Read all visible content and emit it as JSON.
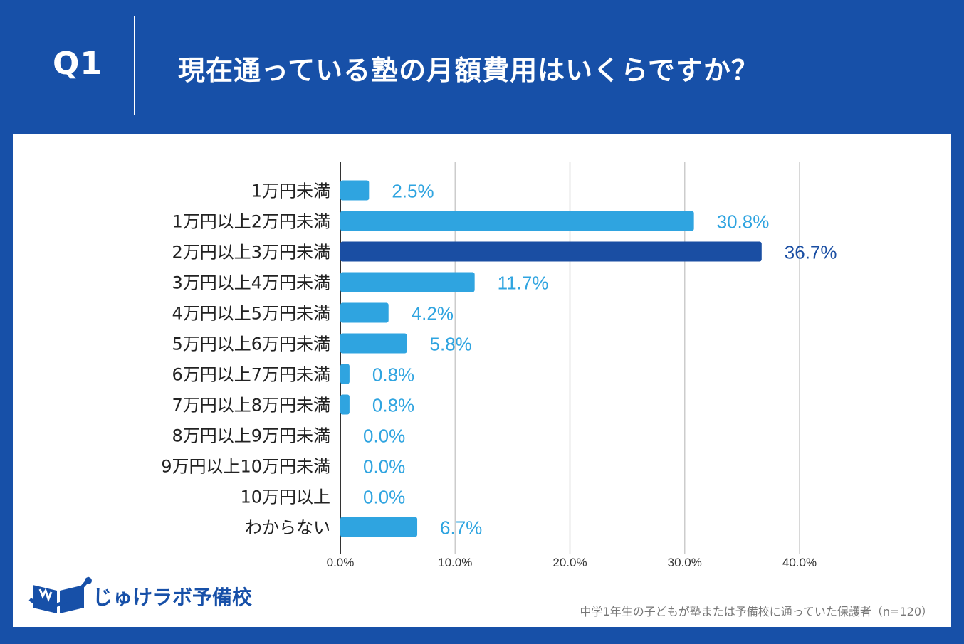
{
  "header": {
    "question_number": "Q1",
    "title": "現在通っている塾の月額費用はいくらですか？"
  },
  "chart_data": {
    "type": "bar",
    "orientation": "horizontal",
    "title": "現在通っている塾の月額費用はいくらですか？",
    "categories": [
      "1万円未満",
      "1万円以上2万円未満",
      "2万円以上3万円未満",
      "3万円以上4万円未満",
      "4万円以上5万円未満",
      "5万円以上6万円未満",
      "6万円以上7万円未満",
      "7万円以上8万円未満",
      "8万円以上9万円未満",
      "9万円以上10万円未満",
      "10万円以上",
      "わからない"
    ],
    "values": [
      2.5,
      30.8,
      36.7,
      11.7,
      4.2,
      5.8,
      0.8,
      0.8,
      0.0,
      0.0,
      0.0,
      6.7
    ],
    "value_labels": [
      "2.5%",
      "30.8%",
      "36.7%",
      "11.7%",
      "4.2%",
      "5.8%",
      "0.8%",
      "0.8%",
      "0.0%",
      "0.0%",
      "0.0%",
      "6.7%"
    ],
    "highlight_index": 2,
    "xlim": [
      0,
      40
    ],
    "x_ticks": [
      0,
      10,
      20,
      30,
      40
    ],
    "x_tick_labels": [
      "0.0%",
      "10.0%",
      "20.0%",
      "30.0%",
      "40.0%"
    ],
    "grid": true,
    "xlabel": "",
    "ylabel": "",
    "colors": {
      "bar": "#2fa4e0",
      "highlight": "#1a4ea3",
      "label": "#2fa4e0",
      "highlight_label": "#1a4ea3",
      "grid": "#cccccc",
      "axis": "#333333"
    }
  },
  "logo": {
    "text": "じゅけラボ予備校",
    "icon": "open-book-icon"
  },
  "footnote": "中学1年生の子どもが塾または予備校に通っていた保護者（n=120）"
}
